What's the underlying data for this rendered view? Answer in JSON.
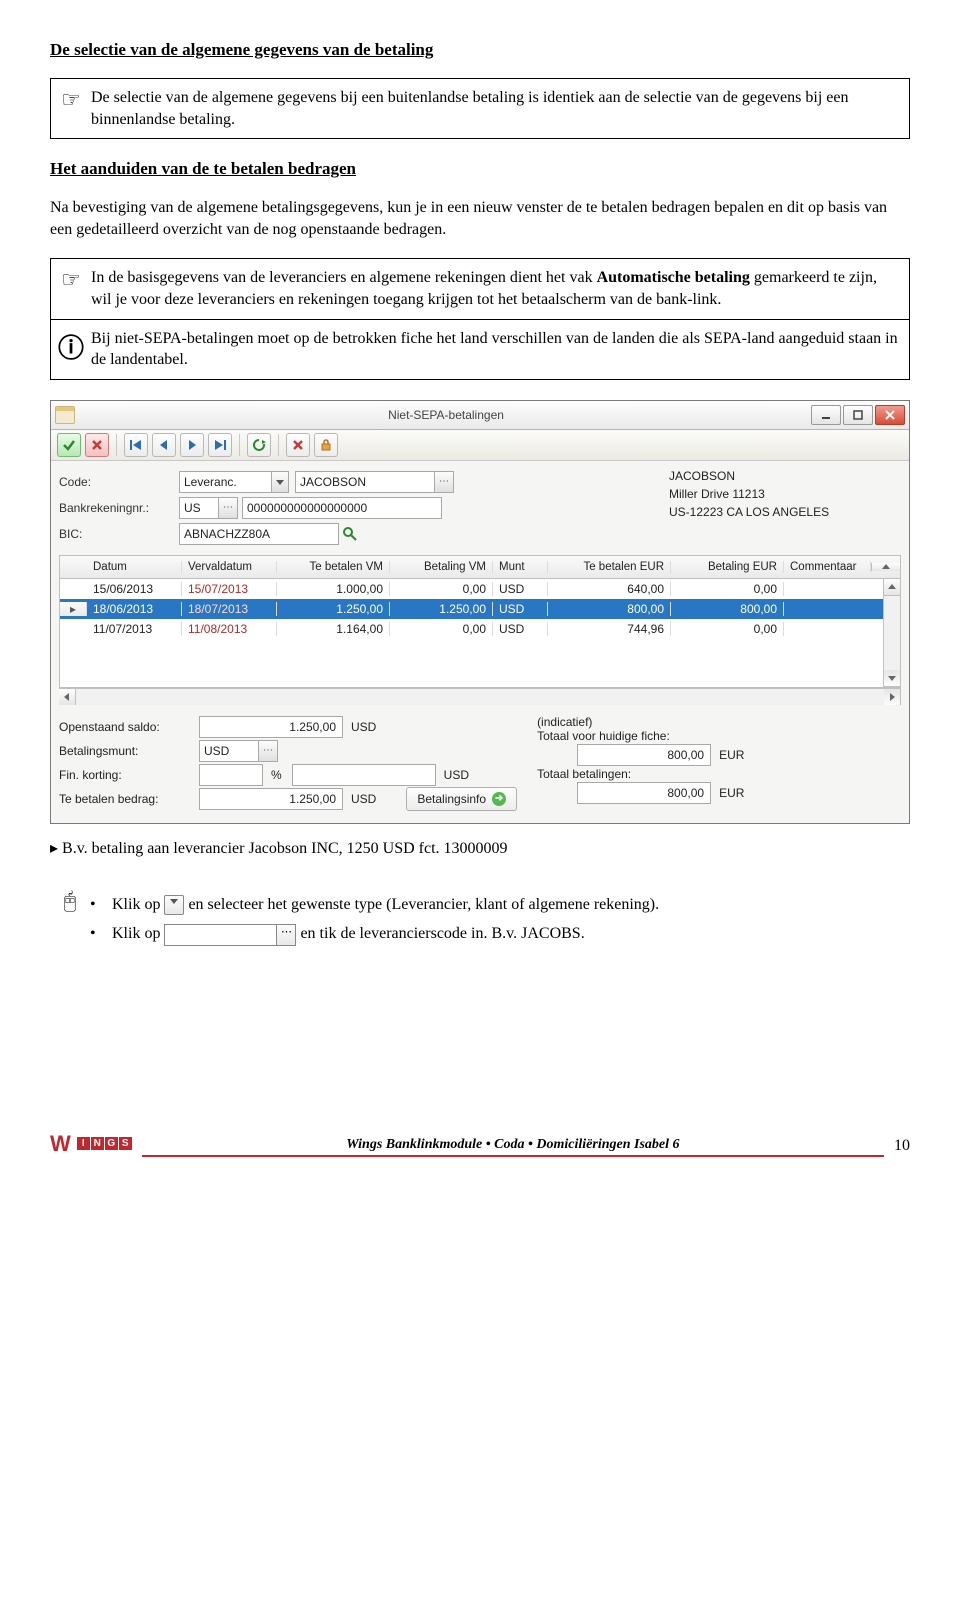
{
  "doc": {
    "title1": "De selectie van de algemene gegevens van de betaling",
    "note1": "De selectie van de algemene gegevens bij een buitenlandse betaling is identiek aan de selectie van de gegevens bij een binnenlandse betaling.",
    "title2": "Het aanduiden van de te betalen bedragen",
    "para1": "Na bevestiging van de algemene betalingsgegevens, kun je in een nieuw venster de te betalen bedragen bepalen en dit op basis van een gedetailleerd overzicht van de nog openstaande bedragen.",
    "note2a_pre": "In de basisgegevens van de leveranciers en algemene rekeningen dient het vak ",
    "note2a_bold": "Automatische betaling",
    "note2a_post": " gemarkeerd te zijn, wil je voor deze leveranciers en rekeningen toegang krijgen tot het betaalscherm van de bank-link.",
    "note2b": "Bij niet-SEPA-betalingen moet op de betrokken fiche het land verschillen van de landen die als SEPA-land aangeduid staan in de landentabel.",
    "caption": "B.v. betaling aan leverancier Jacobson INC, 1250 USD fct. 13000009",
    "step1_a": "Klik op ",
    "step1_b": " en selecteer het gewenste type (Leverancier, klant of algemene rekening).",
    "step2_a": "Klik op ",
    "step2_b": " en tik de leverancierscode in.  B.v. JACOBS."
  },
  "app": {
    "title": "Niet-SEPA-betalingen",
    "form": {
      "code_label": "Code:",
      "code_dd": "Leveranc.",
      "code_value": "JACOBSON",
      "bank_label": "Bankrekeningnr.:",
      "bank_cc": "US",
      "bank_num": "000000000000000000",
      "bic_label": "BIC:",
      "bic_value": "ABNACHZZ80A",
      "addr_name": "JACOBSON",
      "addr_line1": "Miller Drive 11213",
      "addr_line2": "US-12223 CA LOS ANGELES"
    },
    "grid": {
      "headers": {
        "datum": "Datum",
        "verval": "Vervaldatum",
        "tebetalen_vm": "Te betalen VM",
        "betaling_vm": "Betaling VM",
        "munt": "Munt",
        "tebetalen_eur": "Te betalen EUR",
        "betaling_eur": "Betaling EUR",
        "comment": "Commentaar"
      },
      "rows": [
        {
          "datum": "15/06/2013",
          "verval": "15/07/2013",
          "tbvm": "1.000,00",
          "bvm": "0,00",
          "munt": "USD",
          "tbe": "640,00",
          "be": "0,00",
          "sel": false,
          "marker": ""
        },
        {
          "datum": "18/06/2013",
          "verval": "18/07/2013",
          "tbvm": "1.250,00",
          "bvm": "1.250,00",
          "munt": "USD",
          "tbe": "800,00",
          "be": "800,00",
          "sel": true,
          "marker": "▸"
        },
        {
          "datum": "11/07/2013",
          "verval": "11/08/2013",
          "tbvm": "1.164,00",
          "bvm": "0,00",
          "munt": "USD",
          "tbe": "744,96",
          "be": "0,00",
          "sel": false,
          "marker": ""
        }
      ]
    },
    "bottom": {
      "open_label": "Openstaand saldo:",
      "open_val": "1.250,00",
      "open_suf": "USD",
      "munt_label": "Betalingsmunt:",
      "munt_val": "USD",
      "fin_label": "Fin. korting:",
      "fin_suf_pct": "%",
      "fin_suf": "USD",
      "teb_label": "Te betalen bedrag:",
      "teb_val": "1.250,00",
      "teb_suf": "USD",
      "info_btn": "Betalingsinfo",
      "ind": "(indicatief)",
      "tot1_label": "Totaal voor huidige fiche:",
      "tot1_val": "800,00",
      "tot1_suf": "EUR",
      "tot2_label": "Totaal betalingen:",
      "tot2_val": "800,00",
      "tot2_suf": "EUR"
    }
  },
  "footer": {
    "text": "Wings Banklinkmodule • Coda • Domiciliëringen Isabel 6",
    "page": "10"
  }
}
